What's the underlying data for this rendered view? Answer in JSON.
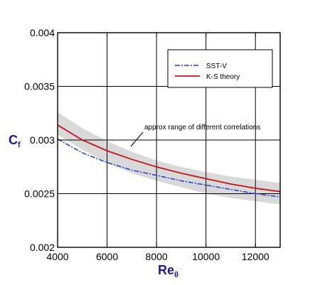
{
  "chart_data": {
    "type": "line",
    "xlabel_main": "Re",
    "xlabel_sub": "θ",
    "ylabel_main": "C",
    "ylabel_sub": "f",
    "xlim": [
      4000,
      13000
    ],
    "ylim": [
      0.002,
      0.004
    ],
    "x_ticks": [
      4000,
      6000,
      8000,
      10000,
      12000
    ],
    "x_tick_labels": [
      "4000",
      "6000",
      "8000",
      "10000",
      "12000"
    ],
    "y_ticks": [
      0.002,
      0.0025,
      0.003,
      0.0035,
      0.004
    ],
    "y_tick_labels": [
      "0.002",
      "0.0025",
      "0.003",
      "0.0035",
      "0.004"
    ],
    "grid": true,
    "legend_position": "top-right",
    "band": {
      "x": [
        4000,
        5000,
        6000,
        7000,
        8000,
        9000,
        10000,
        11000,
        12000,
        13000
      ],
      "upper": [
        0.00326,
        0.00311,
        0.00299,
        0.00289,
        0.00281,
        0.00275,
        0.0027,
        0.00266,
        0.00263,
        0.0026
      ],
      "lower": [
        0.00305,
        0.00291,
        0.00279,
        0.00269,
        0.00262,
        0.00256,
        0.0025,
        0.00246,
        0.00243,
        0.0024
      ],
      "color": "#d9d9d9"
    },
    "series": [
      {
        "name": "SST-V",
        "color": "#1f3fd6",
        "style": "dashdot",
        "x": [
          4000,
          5000,
          6000,
          7000,
          8000,
          9000,
          10000,
          11000,
          12000,
          13000
        ],
        "y": [
          0.00301,
          0.00288,
          0.00279,
          0.00272,
          0.00267,
          0.00262,
          0.00258,
          0.00254,
          0.0025,
          0.00247
        ]
      },
      {
        "name": "K-S theory",
        "color": "#c0141b",
        "style": "solid",
        "x": [
          4000,
          5000,
          6000,
          7000,
          8000,
          9000,
          10000,
          11000,
          12000,
          13000
        ],
        "y": [
          0.00314,
          0.003,
          0.0029,
          0.00282,
          0.00275,
          0.00269,
          0.00264,
          0.00259,
          0.00255,
          0.00252
        ]
      }
    ],
    "annotations": [
      {
        "text": "approx range of different correlations",
        "arrow_to_x": 7000,
        "arrow_to_y": 0.00286
      }
    ]
  }
}
